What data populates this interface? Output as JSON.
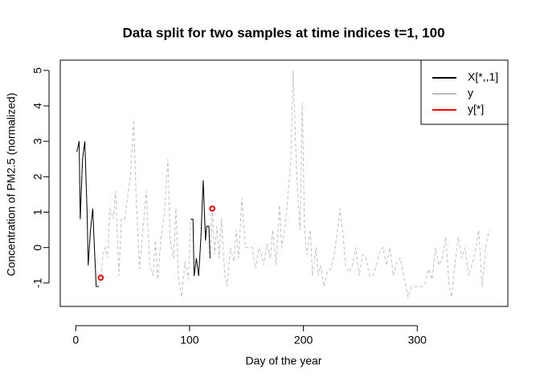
{
  "chart_data": {
    "type": "line",
    "title": "Data split for two samples at time indices t=1, 100",
    "x_label": "Day of the year",
    "y_label": "Concentration of PM2.5 (normalized)",
    "xlim": [
      -13.56,
      379.56
    ],
    "xticks": [
      0,
      100,
      200,
      300
    ],
    "ylim": [
      -1.66,
      5.29
    ],
    "yticks": [
      -1,
      0,
      1,
      2,
      3,
      4,
      5
    ],
    "grid": false,
    "legend": "top-right",
    "series": [
      {
        "name": "X[*,,1]",
        "color": "#000000",
        "style": "line",
        "x": [
          1,
          3,
          4,
          6,
          8,
          10,
          11,
          13,
          15,
          16,
          18,
          20,
          22,
          101,
          103,
          104,
          106,
          108,
          110,
          112,
          114,
          115,
          117,
          118
        ],
        "values": [
          2.7,
          3.0,
          0.8,
          2.5,
          3.0,
          1.0,
          -0.5,
          0.5,
          1.1,
          0.3,
          -1.1,
          -1.1,
          null,
          0.8,
          0.8,
          -0.8,
          -0.3,
          -0.8,
          0.3,
          1.9,
          0.2,
          0.6,
          0.6,
          -0.3
        ]
      },
      {
        "name": "y",
        "color": "#bebebe",
        "style": "dashed",
        "x": [
          1,
          3,
          4,
          6,
          8,
          10,
          11,
          13,
          15,
          16,
          18,
          20,
          22,
          24,
          26,
          28,
          30,
          33,
          35,
          38,
          40,
          43,
          45,
          48,
          51,
          53,
          56,
          59,
          62,
          65,
          68,
          70,
          72,
          75,
          78,
          81,
          83,
          86,
          88,
          90,
          93,
          96,
          99,
          101,
          103,
          104,
          106,
          108,
          110,
          112,
          114,
          115,
          117,
          118,
          120,
          122,
          124,
          126,
          128,
          131,
          133,
          136,
          139,
          141,
          143,
          146,
          149,
          152,
          155,
          158,
          161,
          163,
          165,
          168,
          171,
          173,
          176,
          179,
          181,
          184,
          186,
          189,
          191,
          193,
          195,
          197,
          199,
          201,
          203,
          206,
          208,
          211,
          213,
          215,
          218,
          221,
          224,
          227,
          230,
          232,
          235,
          237,
          240,
          243,
          246,
          249,
          252,
          255,
          258,
          261,
          264,
          267,
          270,
          273,
          276,
          279,
          282,
          285,
          288,
          290,
          292,
          295,
          298,
          301,
          304,
          307,
          310,
          313,
          316,
          319,
          322,
          325,
          328,
          330,
          333,
          336,
          339,
          342,
          345,
          348,
          351,
          354,
          357,
          360,
          363
        ],
        "values": [
          2.7,
          3.0,
          0.8,
          2.5,
          3.0,
          1.0,
          -0.5,
          0.5,
          1.1,
          0.3,
          -1.1,
          -1.1,
          -0.85,
          -0.2,
          0.0,
          -0.3,
          1.1,
          0.8,
          1.6,
          -0.8,
          0.8,
          0.8,
          1.3,
          2.0,
          3.6,
          1.5,
          -0.6,
          0.5,
          1.6,
          -0.5,
          -0.8,
          0.2,
          -0.9,
          0.3,
          1.0,
          2.5,
          0.2,
          -0.3,
          1.1,
          -0.8,
          -1.4,
          -0.4,
          -0.9,
          0.8,
          0.8,
          -0.8,
          -0.3,
          -0.8,
          0.3,
          1.9,
          0.2,
          0.6,
          0.6,
          -0.3,
          1.1,
          -0.2,
          0.6,
          -0.3,
          0.8,
          -0.8,
          -1.1,
          0.0,
          -0.4,
          0.5,
          -0.3,
          1.4,
          0.0,
          0.0,
          0.0,
          -0.6,
          0.0,
          -0.2,
          -0.5,
          0.1,
          -0.3,
          0.5,
          -0.5,
          1.2,
          0.0,
          0.6,
          1.3,
          2.5,
          5.0,
          3.0,
          1.5,
          0.5,
          4.1,
          0.5,
          -0.2,
          0.5,
          -0.8,
          0.0,
          -0.8,
          -0.5,
          -1.1,
          -0.7,
          -0.6,
          -0.2,
          0.5,
          1.1,
          0.3,
          -0.5,
          -0.7,
          -0.5,
          0.0,
          -0.8,
          -0.2,
          -0.3,
          -0.8,
          -0.8,
          -0.5,
          -0.1,
          0.0,
          -0.5,
          0.0,
          -0.8,
          -0.4,
          -0.3,
          -0.8,
          -1.1,
          -1.4,
          -1.1,
          -1.1,
          -1.1,
          -1.1,
          -1.0,
          -0.6,
          -0.9,
          0.0,
          -0.5,
          -0.3,
          0.3,
          -1.1,
          -1.4,
          -0.5,
          0.3,
          -0.3,
          0.0,
          -0.8,
          -0.5,
          -0.1,
          0.5,
          -1.1,
          0.0,
          0.5
        ]
      },
      {
        "name": "y[*]",
        "color": "#ff0000",
        "style": "points",
        "x": [
          22,
          120
        ],
        "values": [
          -0.85,
          1.1
        ]
      }
    ]
  }
}
